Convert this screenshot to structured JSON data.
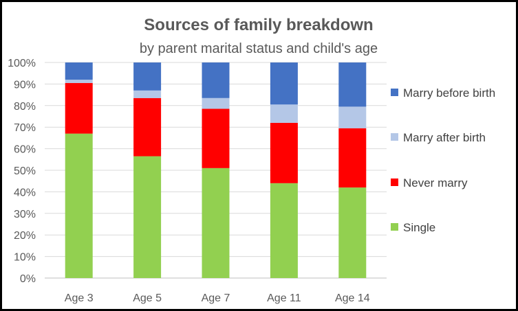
{
  "chart_data": {
    "type": "bar",
    "stacked": true,
    "title": "Sources of family breakdown",
    "subtitle": "by parent marital status and child's age",
    "xlabel": "",
    "ylabel": "",
    "categories": [
      "Age 3",
      "Age 5",
      "Age 7",
      "Age 11",
      "Age 14"
    ],
    "ylim": [
      0,
      100
    ],
    "yticks": [
      "0%",
      "10%",
      "20%",
      "30%",
      "40%",
      "50%",
      "60%",
      "70%",
      "80%",
      "90%",
      "100%"
    ],
    "grid": true,
    "legend_position": "right",
    "series": [
      {
        "name": "Single",
        "color": "#92D050",
        "values": [
          67,
          56.5,
          51,
          44,
          42
        ]
      },
      {
        "name": "Never marry",
        "color": "#FF0000",
        "values": [
          23.5,
          27,
          27.5,
          28,
          27.5
        ]
      },
      {
        "name": "Marry after birth",
        "color": "#B4C7E7",
        "values": [
          1.5,
          3.5,
          5,
          8.5,
          10
        ]
      },
      {
        "name": "Marry before birth",
        "color": "#4472C4",
        "values": [
          8,
          13,
          16.5,
          19.5,
          20.5
        ]
      }
    ]
  }
}
